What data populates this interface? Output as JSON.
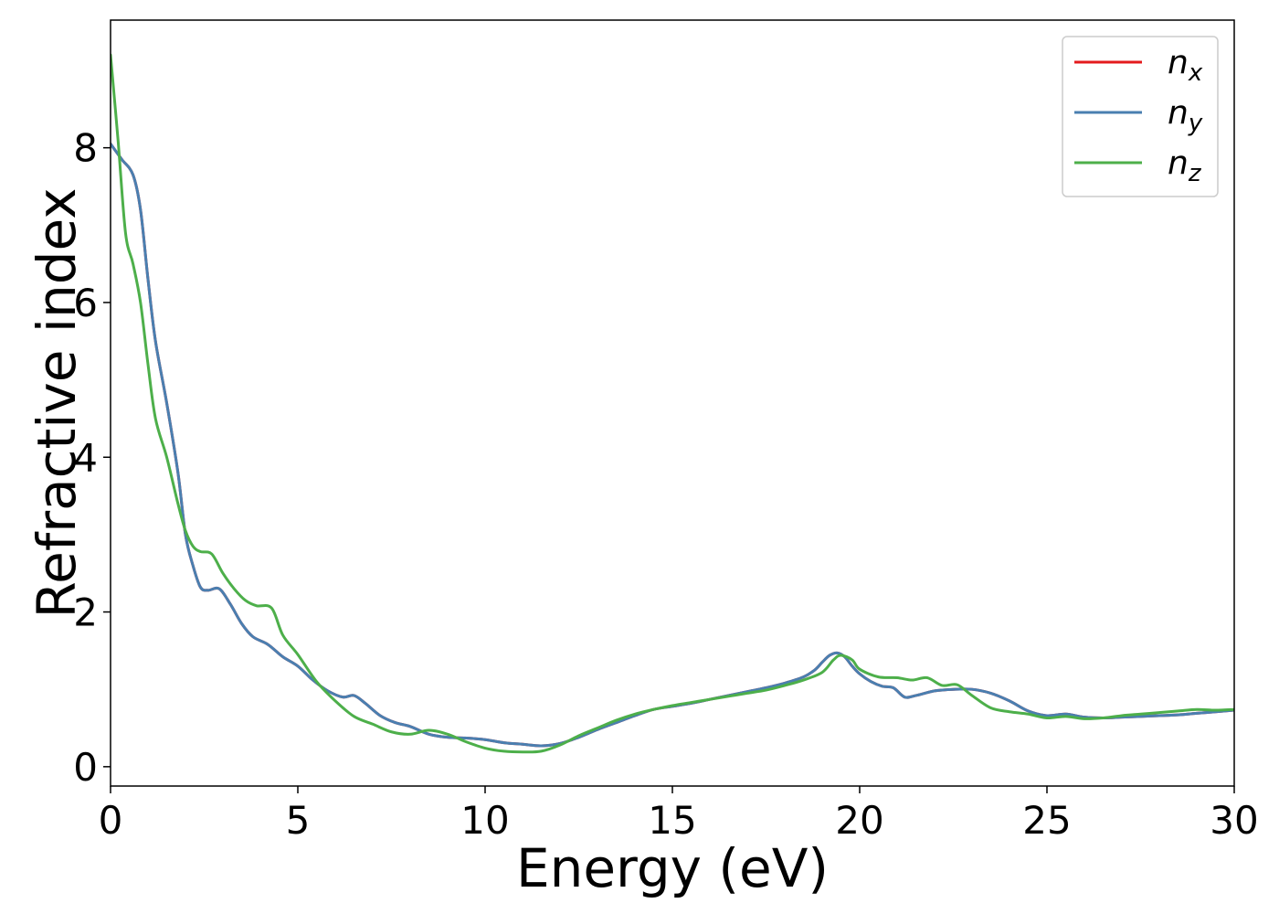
{
  "chart_data": {
    "type": "line",
    "title": "",
    "xlabel": "Energy (eV)",
    "ylabel": "Refractive index",
    "xlim": [
      0,
      30
    ],
    "ylim": [
      -0.25,
      9.65
    ],
    "xticks": [
      0,
      5,
      10,
      15,
      20,
      25,
      30
    ],
    "yticks": [
      0,
      2,
      4,
      6,
      8
    ],
    "grid": false,
    "legend_position": "top-right",
    "series": [
      {
        "name": "n",
        "subscript": "x",
        "color": "#e41a1c",
        "x": [
          0,
          0.3,
          0.6,
          0.8,
          1.0,
          1.2,
          1.5,
          1.8,
          2.0,
          2.2,
          2.4,
          2.6,
          2.9,
          3.2,
          3.5,
          3.8,
          4.2,
          4.6,
          5.0,
          5.4,
          5.8,
          6.2,
          6.5,
          6.8,
          7.2,
          7.6,
          8.0,
          8.5,
          9.0,
          9.5,
          10.0,
          10.5,
          11.0,
          11.5,
          12.0,
          12.5,
          13.0,
          13.5,
          14.0,
          14.5,
          15.0,
          15.5,
          16.0,
          16.5,
          17.0,
          17.5,
          18.0,
          18.5,
          18.8,
          19.0,
          19.2,
          19.4,
          19.6,
          19.8,
          20.0,
          20.3,
          20.6,
          20.9,
          21.2,
          21.5,
          22.0,
          22.5,
          23.0,
          23.5,
          24.0,
          24.5,
          25.0,
          25.5,
          26.0,
          26.5,
          27.0,
          27.5,
          28.0,
          28.5,
          29.0,
          29.5,
          30.0
        ],
        "y": [
          8.05,
          7.85,
          7.65,
          7.2,
          6.3,
          5.5,
          4.7,
          3.8,
          3.0,
          2.6,
          2.32,
          2.28,
          2.3,
          2.1,
          1.85,
          1.68,
          1.58,
          1.42,
          1.3,
          1.12,
          0.98,
          0.9,
          0.92,
          0.82,
          0.66,
          0.57,
          0.52,
          0.42,
          0.38,
          0.37,
          0.35,
          0.31,
          0.29,
          0.27,
          0.3,
          0.38,
          0.48,
          0.57,
          0.66,
          0.74,
          0.78,
          0.82,
          0.87,
          0.92,
          0.97,
          1.02,
          1.08,
          1.16,
          1.25,
          1.35,
          1.44,
          1.47,
          1.42,
          1.3,
          1.2,
          1.1,
          1.04,
          1.02,
          0.9,
          0.92,
          0.98,
          1.0,
          1.0,
          0.95,
          0.85,
          0.72,
          0.66,
          0.68,
          0.64,
          0.63,
          0.64,
          0.65,
          0.66,
          0.67,
          0.69,
          0.71,
          0.73
        ]
      },
      {
        "name": "n",
        "subscript": "y",
        "color": "#4a7fb0",
        "x": [
          0,
          0.3,
          0.6,
          0.8,
          1.0,
          1.2,
          1.5,
          1.8,
          2.0,
          2.2,
          2.4,
          2.6,
          2.9,
          3.2,
          3.5,
          3.8,
          4.2,
          4.6,
          5.0,
          5.4,
          5.8,
          6.2,
          6.5,
          6.8,
          7.2,
          7.6,
          8.0,
          8.5,
          9.0,
          9.5,
          10.0,
          10.5,
          11.0,
          11.5,
          12.0,
          12.5,
          13.0,
          13.5,
          14.0,
          14.5,
          15.0,
          15.5,
          16.0,
          16.5,
          17.0,
          17.5,
          18.0,
          18.5,
          18.8,
          19.0,
          19.2,
          19.4,
          19.6,
          19.8,
          20.0,
          20.3,
          20.6,
          20.9,
          21.2,
          21.5,
          22.0,
          22.5,
          23.0,
          23.5,
          24.0,
          24.5,
          25.0,
          25.5,
          26.0,
          26.5,
          27.0,
          27.5,
          28.0,
          28.5,
          29.0,
          29.5,
          30.0
        ],
        "y": [
          8.05,
          7.85,
          7.65,
          7.2,
          6.3,
          5.5,
          4.7,
          3.8,
          3.0,
          2.6,
          2.32,
          2.28,
          2.3,
          2.1,
          1.85,
          1.68,
          1.58,
          1.42,
          1.3,
          1.12,
          0.98,
          0.9,
          0.92,
          0.82,
          0.66,
          0.57,
          0.52,
          0.42,
          0.38,
          0.37,
          0.35,
          0.31,
          0.29,
          0.27,
          0.3,
          0.38,
          0.48,
          0.57,
          0.66,
          0.74,
          0.78,
          0.82,
          0.87,
          0.92,
          0.97,
          1.02,
          1.08,
          1.16,
          1.25,
          1.35,
          1.44,
          1.47,
          1.42,
          1.3,
          1.2,
          1.1,
          1.04,
          1.02,
          0.9,
          0.92,
          0.98,
          1.0,
          1.0,
          0.95,
          0.85,
          0.72,
          0.66,
          0.68,
          0.64,
          0.63,
          0.64,
          0.65,
          0.66,
          0.67,
          0.69,
          0.71,
          0.73
        ]
      },
      {
        "name": "n",
        "subscript": "z",
        "color": "#4daf4a",
        "x": [
          0,
          0.2,
          0.4,
          0.6,
          0.8,
          1.0,
          1.2,
          1.5,
          1.8,
          2.0,
          2.2,
          2.4,
          2.7,
          3.0,
          3.3,
          3.6,
          3.9,
          4.3,
          4.6,
          5.0,
          5.5,
          6.0,
          6.5,
          7.0,
          7.5,
          8.0,
          8.5,
          9.0,
          9.5,
          10.0,
          10.5,
          11.0,
          11.5,
          12.0,
          12.5,
          13.0,
          13.5,
          14.0,
          14.5,
          15.0,
          15.5,
          16.0,
          16.5,
          17.0,
          17.5,
          18.0,
          18.5,
          19.0,
          19.3,
          19.5,
          19.8,
          20.0,
          20.5,
          21.0,
          21.4,
          21.8,
          22.2,
          22.6,
          23.0,
          23.5,
          24.0,
          24.5,
          25.0,
          25.5,
          26.0,
          26.5,
          27.0,
          27.5,
          28.0,
          28.5,
          29.0,
          29.5,
          30.0
        ],
        "y": [
          9.2,
          8.1,
          6.9,
          6.5,
          6.0,
          5.2,
          4.5,
          4.0,
          3.4,
          3.05,
          2.85,
          2.78,
          2.75,
          2.5,
          2.3,
          2.15,
          2.08,
          2.05,
          1.7,
          1.45,
          1.1,
          0.85,
          0.65,
          0.55,
          0.45,
          0.42,
          0.47,
          0.42,
          0.32,
          0.24,
          0.2,
          0.19,
          0.2,
          0.28,
          0.4,
          0.5,
          0.6,
          0.68,
          0.74,
          0.79,
          0.83,
          0.87,
          0.91,
          0.95,
          0.99,
          1.05,
          1.12,
          1.22,
          1.38,
          1.44,
          1.38,
          1.26,
          1.16,
          1.15,
          1.12,
          1.15,
          1.05,
          1.06,
          0.92,
          0.76,
          0.71,
          0.68,
          0.63,
          0.65,
          0.62,
          0.63,
          0.66,
          0.68,
          0.7,
          0.72,
          0.74,
          0.73,
          0.74
        ]
      }
    ]
  }
}
